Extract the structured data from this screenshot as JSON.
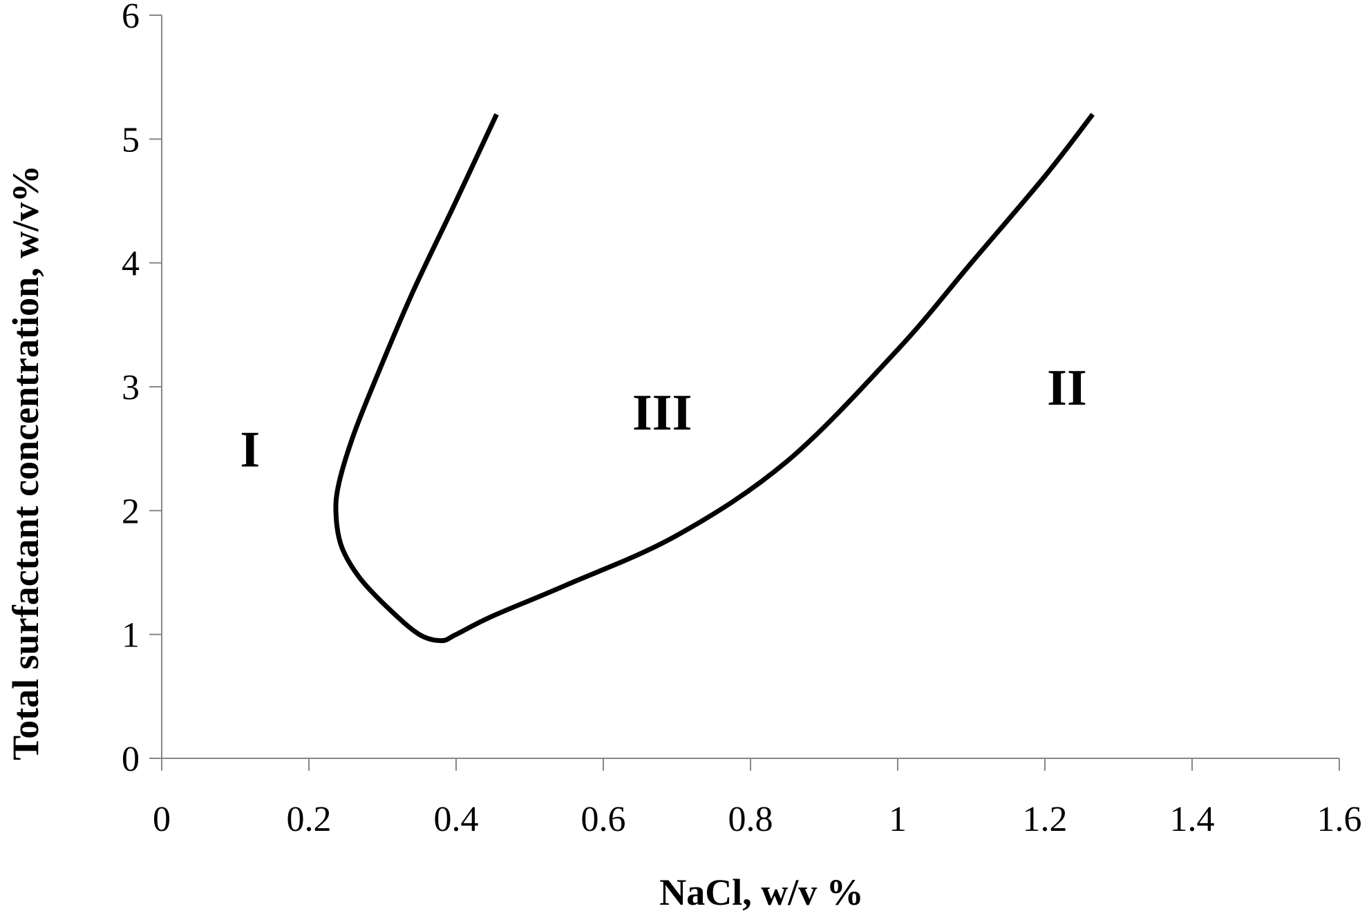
{
  "chart_data": {
    "type": "line",
    "title": "",
    "xlabel": "NaCl, w/v %",
    "ylabel": "Total surfactant concentration, w/v%",
    "xlim": [
      0,
      1.6
    ],
    "ylim": [
      0,
      6
    ],
    "x_ticks": [
      "0",
      "0.2",
      "0.4",
      "0.6",
      "0.8",
      "1",
      "1.2",
      "1.4",
      "1.6"
    ],
    "y_ticks": [
      "0",
      "1",
      "2",
      "3",
      "4",
      "5",
      "6"
    ],
    "grid": false,
    "legend": "none",
    "line_color": "#000000",
    "series": [
      {
        "x": [
          0.455,
          0.4,
          0.34,
          0.29,
          0.26,
          0.24,
          0.237,
          0.245,
          0.27,
          0.31,
          0.35,
          0.38,
          0.4,
          0.45,
          0.55,
          0.7,
          0.85,
          1.0,
          1.1,
          1.2,
          1.265
        ],
        "y": [
          5.2,
          4.5,
          3.75,
          3.05,
          2.6,
          2.2,
          1.95,
          1.7,
          1.45,
          1.2,
          1.0,
          0.95,
          1.0,
          1.15,
          1.4,
          1.8,
          2.4,
          3.3,
          4.0,
          4.7,
          5.2
        ]
      }
    ],
    "annotations": [
      {
        "text": "I",
        "x": 0.12,
        "y": 2.5
      },
      {
        "text": "III",
        "x": 0.68,
        "y": 2.8
      },
      {
        "text": "II",
        "x": 1.23,
        "y": 3.0
      }
    ]
  }
}
